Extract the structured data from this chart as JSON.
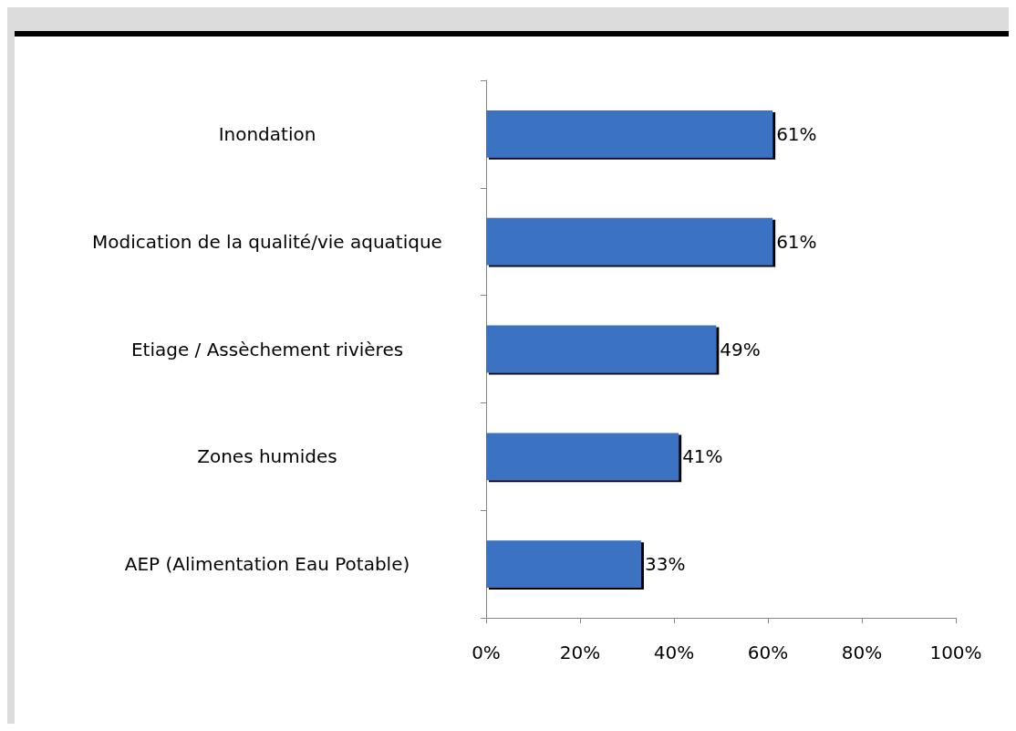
{
  "chart_data": {
    "type": "bar",
    "orientation": "horizontal",
    "categories": [
      "Inondation",
      "Modication de la qualité/vie aquatique",
      "Etiage / Assèchement rivières",
      "Zones humides",
      "AEP (Alimentation Eau Potable)"
    ],
    "values": [
      61,
      61,
      49,
      41,
      33
    ],
    "value_labels": [
      "61%",
      "61%",
      "49%",
      "41%",
      "33%"
    ],
    "color": "#3b72c2",
    "xlim": [
      0,
      100
    ],
    "xticks": [
      {
        "value": 0,
        "label": "0%"
      },
      {
        "value": 20,
        "label": "20%"
      },
      {
        "value": 40,
        "label": "40%"
      },
      {
        "value": 60,
        "label": "60%"
      },
      {
        "value": 80,
        "label": "80%"
      },
      {
        "value": 100,
        "label": "100%"
      }
    ]
  }
}
